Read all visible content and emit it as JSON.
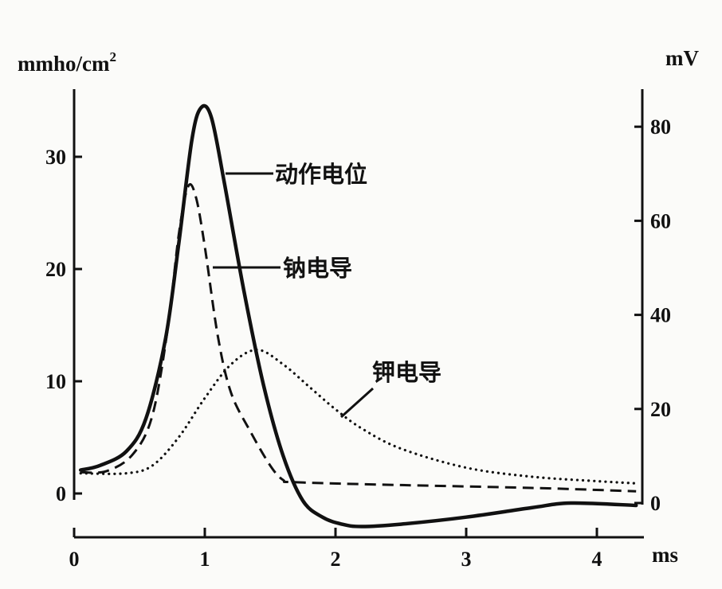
{
  "chart_data": {
    "type": "line",
    "x_unit": "ms",
    "xlim": [
      0,
      4.3
    ],
    "x_ticks": [
      0,
      1,
      2,
      3,
      4
    ],
    "y_left": {
      "unit": "mmho/cm",
      "unit_sup": "2",
      "ticks": [
        0,
        10,
        20,
        30
      ],
      "ylim": [
        0,
        36
      ]
    },
    "y_right": {
      "unit": "mV",
      "ticks": [
        0,
        20,
        40,
        60,
        80
      ],
      "ylim": [
        0,
        92
      ]
    },
    "series": [
      {
        "name": "动作电位",
        "axis": "right",
        "style": "solid",
        "points": [
          [
            0.05,
            7
          ],
          [
            0.2,
            8
          ],
          [
            0.4,
            11
          ],
          [
            0.55,
            18
          ],
          [
            0.7,
            35
          ],
          [
            0.8,
            55
          ],
          [
            0.9,
            77
          ],
          [
            0.97,
            84
          ],
          [
            1.05,
            82
          ],
          [
            1.15,
            68
          ],
          [
            1.3,
            45
          ],
          [
            1.45,
            25
          ],
          [
            1.6,
            10
          ],
          [
            1.75,
            0.5
          ],
          [
            1.9,
            -3
          ],
          [
            2.05,
            -4.5
          ],
          [
            2.2,
            -5
          ],
          [
            2.5,
            -4.5
          ],
          [
            3.0,
            -3
          ],
          [
            3.5,
            -1
          ],
          [
            3.8,
            0
          ],
          [
            4.3,
            -0.5
          ]
        ]
      },
      {
        "name": "钠电导",
        "axis": "left",
        "style": "dashed",
        "points": [
          [
            0.05,
            1.9
          ],
          [
            0.25,
            2
          ],
          [
            0.45,
            3.5
          ],
          [
            0.6,
            7
          ],
          [
            0.72,
            15
          ],
          [
            0.8,
            23
          ],
          [
            0.87,
            27.3
          ],
          [
            0.93,
            26.5
          ],
          [
            1.0,
            22
          ],
          [
            1.1,
            14
          ],
          [
            1.2,
            9
          ],
          [
            1.35,
            5.5
          ],
          [
            1.5,
            2.5
          ],
          [
            1.6,
            1.2
          ],
          [
            1.7,
            1.0
          ],
          [
            2.5,
            0.75
          ],
          [
            3.5,
            0.5
          ],
          [
            4.3,
            0.2
          ]
        ]
      },
      {
        "name": "钾电导",
        "axis": "left",
        "style": "dotted",
        "points": [
          [
            0.05,
            1.8
          ],
          [
            0.4,
            1.8
          ],
          [
            0.6,
            2.5
          ],
          [
            0.8,
            5
          ],
          [
            1.0,
            8.5
          ],
          [
            1.2,
            11.5
          ],
          [
            1.4,
            12.8
          ],
          [
            1.6,
            11.5
          ],
          [
            1.8,
            9.5
          ],
          [
            2.0,
            7.5
          ],
          [
            2.2,
            5.8
          ],
          [
            2.5,
            4.0
          ],
          [
            3.0,
            2.3
          ],
          [
            3.5,
            1.5
          ],
          [
            4.0,
            1.1
          ],
          [
            4.3,
            0.9
          ]
        ]
      }
    ],
    "annotations": [
      {
        "text": "动作电位",
        "series": "动作电位"
      },
      {
        "text": "钠电导",
        "series": "钠电导"
      },
      {
        "text": "钾电导",
        "series": "钾电导"
      }
    ]
  },
  "annotations": {
    "action_potential": "动作电位",
    "sodium": "钠电导",
    "potassium": "钾电导"
  }
}
